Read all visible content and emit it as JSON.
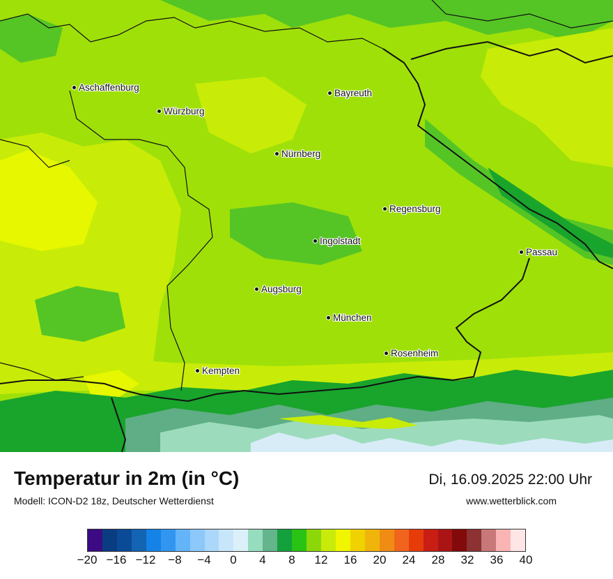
{
  "map": {
    "cities": [
      {
        "name": "Aschaffenburg"
      },
      {
        "name": "Würzburg"
      },
      {
        "name": "Bayreuth"
      },
      {
        "name": "Nürnberg"
      },
      {
        "name": "Regensburg"
      },
      {
        "name": "Ingolstadt"
      },
      {
        "name": "Passau"
      },
      {
        "name": "Augsburg"
      },
      {
        "name": "München"
      },
      {
        "name": "Rosenheim"
      },
      {
        "name": "Kempten"
      }
    ],
    "colors": {
      "base": "#9fe009",
      "yellow_green": "#c8ec07",
      "yellow": "#e6f700",
      "green": "#55c526",
      "dark_green": "#19a42c",
      "teal": "#5fae85",
      "mint": "#9cdcbc",
      "ice": "#d8ecf8",
      "border": "#111111"
    }
  },
  "footer": {
    "title": "Temperatur in 2m (in °C)",
    "model": "Modell: ICON-D2 18z, Deutscher Wetterdienst",
    "datetime": "Di, 16.09.2025 22:00 Uhr",
    "website": "www.wetterblick.com"
  },
  "legend": {
    "colors": [
      "#3c0a82",
      "#0a3c82",
      "#0a4a96",
      "#1464b4",
      "#1482e6",
      "#3296f0",
      "#64b4fa",
      "#8cc8fa",
      "#aad7fa",
      "#c8e6fa",
      "#dcf0fa",
      "#96dcbe",
      "#64b48c",
      "#14a03c",
      "#28c314",
      "#8cd70a",
      "#c8eb0a",
      "#f0f500",
      "#f0d200",
      "#f0b40a",
      "#f08c14",
      "#f0641e",
      "#e63c0a",
      "#c81e14",
      "#aa1414",
      "#820a0a",
      "#8c3232",
      "#c87878",
      "#fab4b4",
      "#ffe6e6"
    ],
    "ticks": [
      "−20",
      "−16",
      "−12",
      "−8",
      "−4",
      "0",
      "4",
      "8",
      "12",
      "16",
      "20",
      "24",
      "28",
      "32",
      "36",
      "40"
    ]
  }
}
